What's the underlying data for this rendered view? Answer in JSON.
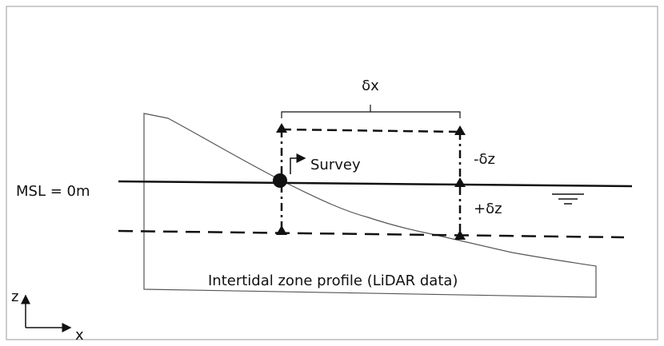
{
  "labels": {
    "dx": "δx",
    "minus_dz": "-δz",
    "plus_dz": "+δz",
    "survey": "Survey",
    "msl": "MSL = 0m",
    "profile": "Intertidal zone profile (LiDAR data)",
    "z_axis": "z",
    "x_axis": "x"
  }
}
